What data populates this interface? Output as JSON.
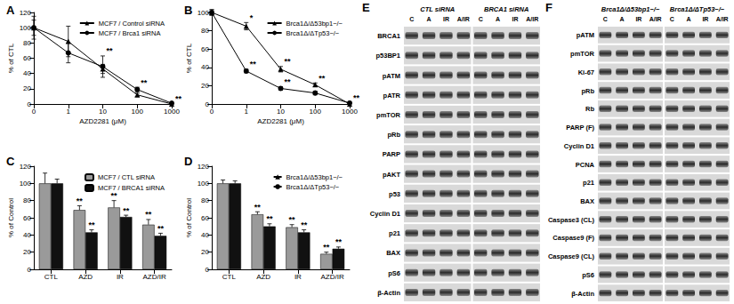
{
  "chart_data": [
    {
      "type": "line",
      "title": "A",
      "x_label": "AZD2281 (μM)",
      "y_label": "% of CTL",
      "categories": [
        "0",
        "1",
        "10",
        "100",
        "1000"
      ],
      "ylim": [
        0,
        120
      ],
      "yticks": [
        0,
        20,
        40,
        60,
        80,
        100,
        120
      ],
      "legend": "upper right",
      "series": [
        {
          "name": "MCF7 / Control siRNA",
          "color": "#000000",
          "marker": "triangle",
          "values": [
            100,
            82,
            46,
            12,
            0
          ],
          "errors": [
            15,
            20,
            6,
            2,
            0
          ],
          "annotations": [
            null,
            null,
            null,
            null,
            null
          ]
        },
        {
          "name": "MCF7 / Brca1 siRNA",
          "color": "#000000",
          "marker": "circle",
          "values": [
            100,
            67,
            49,
            19,
            1
          ],
          "errors": [
            10,
            13,
            14,
            3,
            0
          ],
          "annotations": [
            null,
            null,
            "**",
            "**",
            "**"
          ]
        }
      ]
    },
    {
      "type": "line",
      "title": "B",
      "x_label": "AZD2281 (μM)",
      "y_label": "% of CTL",
      "categories": [
        "0",
        "1",
        "10",
        "100",
        "1000"
      ],
      "ylim": [
        0,
        100
      ],
      "yticks": [
        0,
        20,
        40,
        60,
        80,
        100
      ],
      "legend": "upper right",
      "series": [
        {
          "name": "Brca1Δ/Δ53bp1−/−",
          "color": "#000000",
          "marker": "triangle",
          "values": [
            100,
            85,
            38,
            21,
            0
          ],
          "errors": [
            3,
            4,
            3,
            2,
            0
          ],
          "annotations": [
            null,
            "*",
            "**",
            "**",
            null
          ]
        },
        {
          "name": "Brca1Δ/ΔTp53−/−",
          "color": "#000000",
          "marker": "circle",
          "values": [
            100,
            36,
            17,
            12,
            1
          ],
          "errors": [
            3,
            2,
            2,
            2,
            0
          ],
          "annotations": [
            null,
            "**",
            "**",
            null,
            "**"
          ]
        }
      ]
    },
    {
      "type": "bar",
      "title": "C",
      "y_label": "% of Control",
      "categories": [
        "CTL",
        "AZD",
        "IR",
        "AZD/IR"
      ],
      "ylim": [
        0,
        120
      ],
      "yticks": [
        0,
        20,
        40,
        60,
        80,
        100,
        120
      ],
      "legend": "upper right",
      "series": [
        {
          "name": "MCF7 / CTL siRNA",
          "color": "#9a9a9a",
          "values": [
            100,
            69,
            72,
            52
          ],
          "errors": [
            12,
            5,
            8,
            6
          ],
          "annotations": [
            null,
            "**",
            "**",
            "**"
          ]
        },
        {
          "name": "MCF7 / BRCA1 siRNA",
          "color": "#111111",
          "values": [
            100,
            43,
            61,
            39
          ],
          "errors": [
            5,
            3,
            2,
            3
          ],
          "annotations": [
            null,
            "**",
            "**",
            "**"
          ]
        }
      ]
    },
    {
      "type": "bar",
      "title": "D",
      "y_label": "% of Control",
      "categories": [
        "CTL",
        "AZD",
        "IR",
        "AZD/IR"
      ],
      "ylim": [
        0,
        120
      ],
      "yticks": [
        0,
        20,
        40,
        60,
        80,
        100,
        120
      ],
      "legend": "upper right",
      "series": [
        {
          "name": "Brca1Δ/Δ53bp1−/−",
          "color": "#9a9a9a",
          "values": [
            100,
            64,
            49,
            18
          ],
          "errors": [
            4,
            3,
            3,
            2
          ],
          "annotations": [
            null,
            "**",
            "**",
            "**"
          ]
        },
        {
          "name": "Brca1Δ/ΔTp53−/−",
          "color": "#111111",
          "values": [
            100,
            50,
            43,
            24
          ],
          "errors": [
            3,
            3,
            3,
            2
          ],
          "annotations": [
            null,
            "**",
            "**",
            "**"
          ]
        }
      ]
    }
  ],
  "blots": [
    {
      "label": "E",
      "groups": [
        "CTL siRNA",
        "BRCA1 siRNA"
      ],
      "lanes": [
        "C",
        "A",
        "IR",
        "A/IR"
      ],
      "rows": [
        "BRCA1",
        "p53BP1",
        "pATM",
        "pATR",
        "pmTOR",
        "pRb",
        "PARP",
        "pAKT",
        "p53",
        "Cyclin D1",
        "p21",
        "BAX",
        "pS6",
        "β-Actin"
      ]
    },
    {
      "label": "F",
      "groups": [
        "Brca1Δ/Δ53bp1−/−",
        "Brca1Δ/ΔTp53−/−"
      ],
      "lanes": [
        "C",
        "A",
        "IR",
        "A/IR"
      ],
      "rows": [
        "pATM",
        "pmTOR",
        "Ki-67",
        "pRb",
        "Rb",
        "PARP (F)",
        "Cyclin D1",
        "PCNA",
        "p21",
        "BAX",
        "Caspase3 (CL)",
        "Caspase9 (F)",
        "Caspase9 (CL)",
        "pS6",
        "β-Actin"
      ]
    }
  ]
}
